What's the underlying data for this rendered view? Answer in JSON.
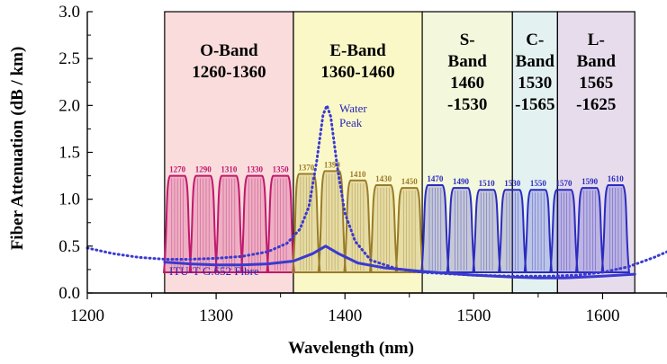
{
  "chart_data": {
    "type": "line",
    "xlabel": "Wavelength (nm)",
    "ylabel": "Fiber Attenuation (dB / km)",
    "xlim": [
      1200,
      1650
    ],
    "ylim": [
      0,
      3.0
    ],
    "xticks": [
      "1200",
      "1300",
      "1400",
      "1500",
      "1600"
    ],
    "yticks": [
      "0.0",
      "0.5",
      "1.0",
      "1.5",
      "2.0",
      "2.5",
      "3.0"
    ],
    "bands": [
      {
        "name_lines": [
          "O-Band",
          "1260-1360"
        ],
        "start": 1260,
        "end": 1360,
        "color": "#fadcdc"
      },
      {
        "name_lines": [
          "E-Band",
          "1360-1460"
        ],
        "start": 1360,
        "end": 1460,
        "color": "#fbf8c8"
      },
      {
        "name_lines": [
          "S-",
          "Band",
          "1460",
          "-1530"
        ],
        "start": 1460,
        "end": 1530,
        "color": "#f3f7dc"
      },
      {
        "name_lines": [
          "C-",
          "Band",
          "1530",
          "-1565"
        ],
        "start": 1530,
        "end": 1565,
        "color": "#e4f1f1"
      },
      {
        "name_lines": [
          "L-",
          "Band",
          "1565",
          "-1625"
        ],
        "start": 1565,
        "end": 1625,
        "color": "#e7dceb"
      }
    ],
    "channels": [
      {
        "label": "1270",
        "center": 1270,
        "peak": 1.25,
        "color": "#c0186e"
      },
      {
        "label": "1290",
        "center": 1290,
        "peak": 1.25,
        "color": "#c0186e"
      },
      {
        "label": "1310",
        "center": 1310,
        "peak": 1.25,
        "color": "#c0186e"
      },
      {
        "label": "1330",
        "center": 1330,
        "peak": 1.25,
        "color": "#c0186e"
      },
      {
        "label": "1350",
        "center": 1350,
        "peak": 1.25,
        "color": "#c0186e"
      },
      {
        "label": "1370",
        "center": 1370,
        "peak": 1.27,
        "color": "#9a7b2a"
      },
      {
        "label": "1390",
        "center": 1390,
        "peak": 1.3,
        "color": "#9a7b2a"
      },
      {
        "label": "1410",
        "center": 1410,
        "peak": 1.2,
        "color": "#9a7b2a"
      },
      {
        "label": "1430",
        "center": 1430,
        "peak": 1.15,
        "color": "#9a7b2a"
      },
      {
        "label": "1450",
        "center": 1450,
        "peak": 1.12,
        "color": "#9a7b2a"
      },
      {
        "label": "1470",
        "center": 1470,
        "peak": 1.15,
        "color": "#2b2bc0"
      },
      {
        "label": "1490",
        "center": 1490,
        "peak": 1.12,
        "color": "#2b2bc0"
      },
      {
        "label": "1510",
        "center": 1510,
        "peak": 1.1,
        "color": "#2b2bc0"
      },
      {
        "label": "1530",
        "center": 1530,
        "peak": 1.1,
        "color": "#2b2bc0"
      },
      {
        "label": "1550",
        "center": 1550,
        "peak": 1.1,
        "color": "#2b2bc0"
      },
      {
        "label": "1570",
        "center": 1570,
        "peak": 1.1,
        "color": "#2b2bc0"
      },
      {
        "label": "1590",
        "center": 1590,
        "peak": 1.12,
        "color": "#2b2bc0"
      },
      {
        "label": "1610",
        "center": 1610,
        "peak": 1.15,
        "color": "#2b2bc0"
      }
    ],
    "series": [
      {
        "name": "ITU-T G.652 Fibre",
        "style": "solid",
        "color": "#3a3ad0",
        "x": [
          1260,
          1280,
          1300,
          1320,
          1340,
          1360,
          1375,
          1385,
          1395,
          1410,
          1430,
          1460,
          1500,
          1530,
          1550,
          1570,
          1600,
          1625
        ],
        "y": [
          0.33,
          0.31,
          0.3,
          0.3,
          0.31,
          0.34,
          0.42,
          0.5,
          0.42,
          0.32,
          0.27,
          0.23,
          0.19,
          0.17,
          0.16,
          0.16,
          0.18,
          0.2
        ]
      },
      {
        "name": "Water Peak",
        "style": "dotted",
        "color": "#3a3ad0",
        "x": [
          1200,
          1220,
          1240,
          1260,
          1280,
          1300,
          1320,
          1340,
          1355,
          1365,
          1372,
          1378,
          1383,
          1386,
          1389,
          1394,
          1400,
          1408,
          1420,
          1440,
          1460,
          1500,
          1530,
          1560,
          1580,
          1600,
          1620,
          1640,
          1650
        ],
        "y": [
          0.48,
          0.42,
          0.38,
          0.36,
          0.36,
          0.37,
          0.39,
          0.44,
          0.53,
          0.68,
          0.92,
          1.4,
          1.9,
          2.0,
          1.88,
          1.35,
          0.85,
          0.55,
          0.35,
          0.26,
          0.22,
          0.19,
          0.18,
          0.18,
          0.19,
          0.22,
          0.28,
          0.38,
          0.44
        ]
      }
    ],
    "annotations": {
      "water_peak": [
        "Water",
        "Peak"
      ],
      "fibre": "ITU-T G.652 Fibre"
    }
  }
}
